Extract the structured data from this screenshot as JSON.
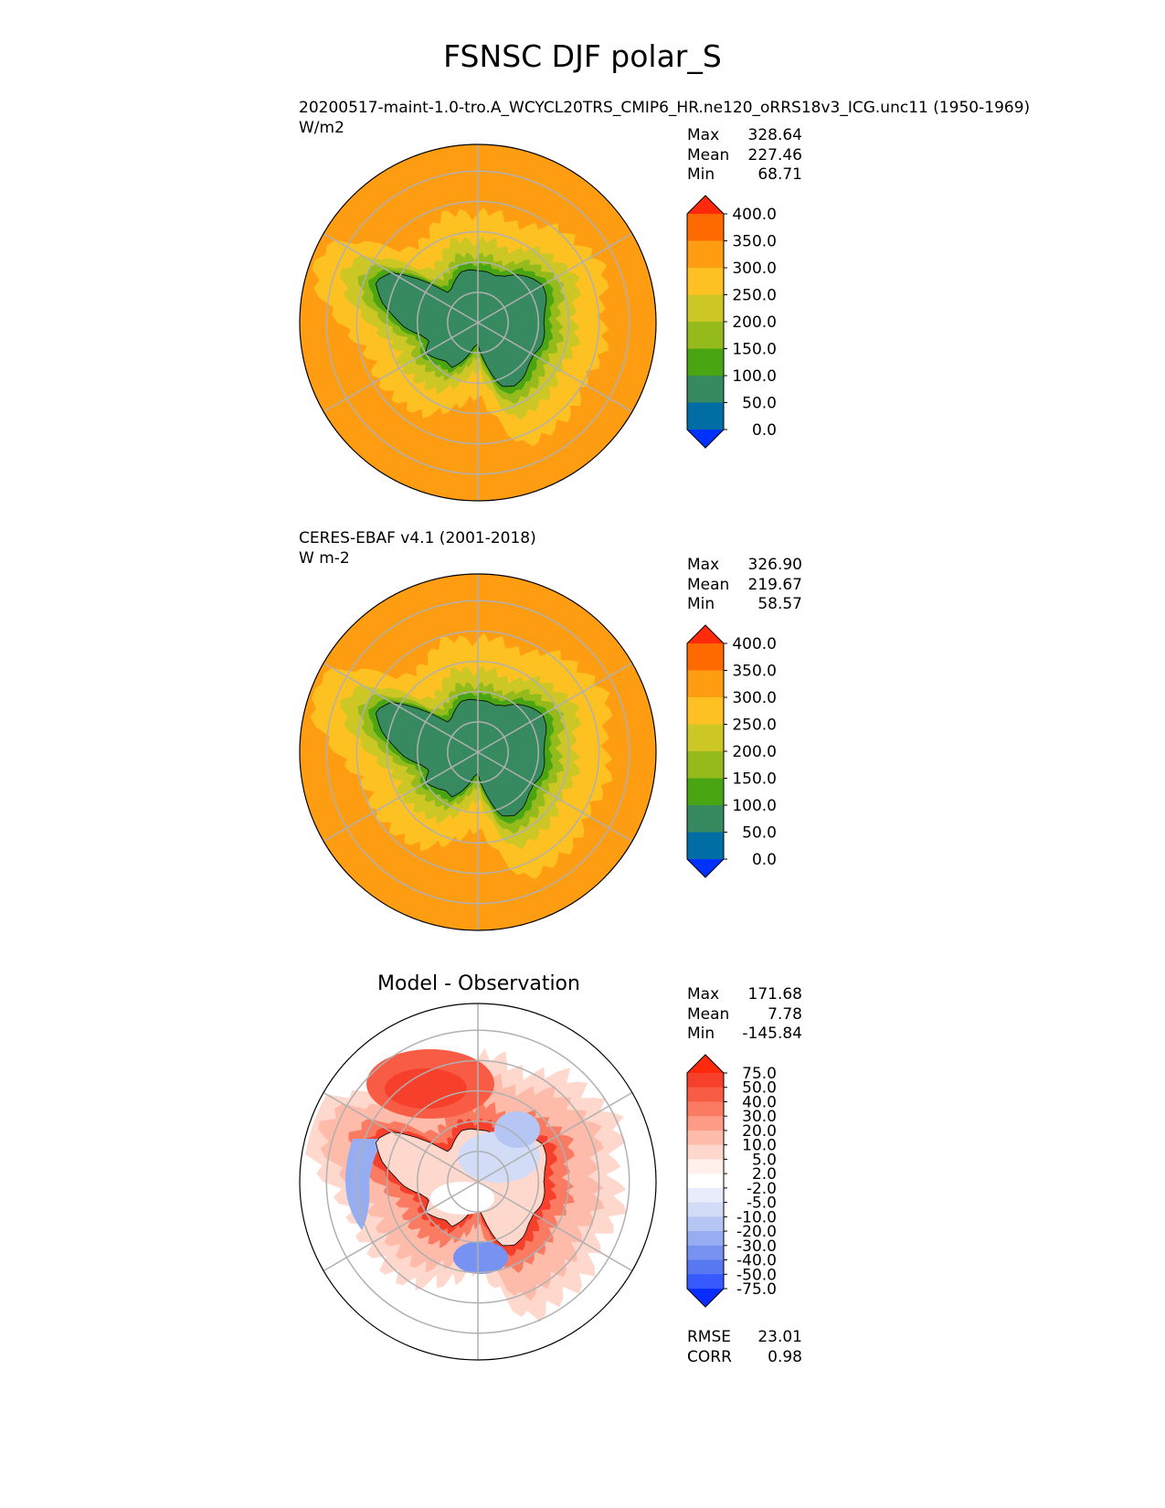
{
  "title": "FSNSC DJF polar_S",
  "panels": [
    {
      "id": "test",
      "title_line1": "20200517-maint-1.0-tro.A_WCYCL20TRS_CMIP6_HR.ne120_oRRS18v3_ICG.unc11 (1950-1969)",
      "title_line2": "W/m2",
      "stats": {
        "max_label": "Max",
        "max": "328.64",
        "mean_label": "Mean",
        "mean": "227.46",
        "min_label": "Min",
        "min": "68.71"
      }
    },
    {
      "id": "reference",
      "title_line1": "CERES-EBAF v4.1 (2001-2018)",
      "title_line2": "W m-2",
      "stats": {
        "max_label": "Max",
        "max": "326.90",
        "mean_label": "Mean",
        "mean": "219.67",
        "min_label": "Min",
        "min": "58.57"
      }
    },
    {
      "id": "difference",
      "heading": "Model - Observation",
      "stats": {
        "max_label": "Max",
        "max": "171.68",
        "mean_label": "Mean",
        "mean": "7.78",
        "min_label": "Min",
        "min": "-145.84"
      },
      "metrics": {
        "rmse_label": "RMSE",
        "rmse": "23.01",
        "corr_label": "CORR",
        "corr": "0.98"
      }
    }
  ],
  "colorbars": {
    "field": {
      "ticks": [
        "400.0",
        "350.0",
        "300.0",
        "250.0",
        "200.0",
        "150.0",
        "100.0",
        "50.0",
        "0.0"
      ],
      "colors_top_to_bottom": [
        "#ff2a0c",
        "#ff6a00",
        "#ff9d12",
        "#fdc221",
        "#cdc726",
        "#94bb1b",
        "#4aa513",
        "#378a5f",
        "#006da4",
        "#0032ff"
      ]
    },
    "diff": {
      "ticks": [
        "75.0",
        "50.0",
        "40.0",
        "30.0",
        "20.0",
        "10.0",
        "5.0",
        "2.0",
        "-2.0",
        "-5.0",
        "-10.0",
        "-20.0",
        "-30.0",
        "-40.0",
        "-50.0",
        "-75.0"
      ],
      "colors_top_to_bottom": [
        "#ff2a0c",
        "#f7402c",
        "#f95c45",
        "#fb7a62",
        "#fd9b86",
        "#febbaa",
        "#ffd8cd",
        "#fff0eb",
        "#ffffff",
        "#e9edfb",
        "#d2dcf7",
        "#b6c6f4",
        "#97adf2",
        "#7892f1",
        "#5878f2",
        "#365aff",
        "#0a2dff"
      ]
    }
  },
  "map_colors": {
    "ocean_warm": "#ff9d12",
    "ocean_mid": "#fdc221",
    "ice_edge": "#cdc726",
    "shelf": "#94bb1b",
    "coast": "#4aa513",
    "continent": "#378a5f",
    "gridline": "#b0b0b0"
  }
}
